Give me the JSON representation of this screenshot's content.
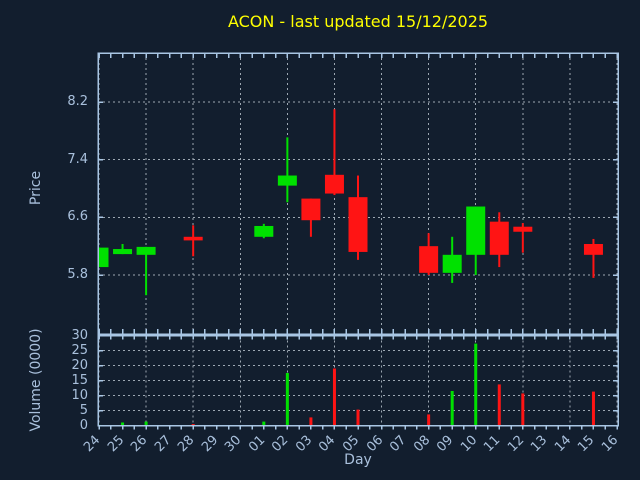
{
  "title": "ACON - last updated 15/12/2025",
  "colors": {
    "background": "#121e2e",
    "up": "#00e100",
    "down": "#ff1414",
    "frame": "#a9c6e4",
    "grid": "#b6c1cb",
    "tick_text": "#a9c0dc",
    "title_text": "#ffff00"
  },
  "chart_data": {
    "type": "candlestick",
    "title": "ACON - last updated 15/12/2025",
    "xlabel": "Day",
    "ylabel_price": "Price",
    "ylabel_volume": "Volume (0000)",
    "grid": true,
    "price_range": [
      4.98,
      8.88
    ],
    "volume_range": [
      0,
      30
    ],
    "x_categories": [
      "24",
      "25",
      "26",
      "27",
      "28",
      "29",
      "30",
      "01",
      "02",
      "03",
      "04",
      "05",
      "06",
      "07",
      "08",
      "09",
      "10",
      "11",
      "12",
      "13",
      "14",
      "15",
      "16"
    ],
    "price_ticks": [
      {
        "label": "8.2",
        "value": 8.2
      },
      {
        "label": "7.4",
        "value": 7.4
      },
      {
        "label": "6.6",
        "value": 6.6
      },
      {
        "label": "5.8",
        "value": 5.8
      }
    ],
    "volume_ticks": [
      {
        "label": "30",
        "value": 30
      },
      {
        "label": "25",
        "value": 25
      },
      {
        "label": "20",
        "value": 20
      },
      {
        "label": "15",
        "value": 15
      },
      {
        "label": "10",
        "value": 10
      },
      {
        "label": "5",
        "value": 5
      },
      {
        "label": "0",
        "value": 0
      }
    ],
    "series": [
      {
        "day": "24",
        "open": 5.91,
        "high": 6.18,
        "low": 5.91,
        "close": 6.18,
        "volume": 0.2
      },
      {
        "day": "25",
        "open": 6.09,
        "high": 6.23,
        "low": 6.09,
        "close": 6.16,
        "volume": 1.0
      },
      {
        "day": "26",
        "open": 6.08,
        "high": 6.19,
        "low": 5.52,
        "close": 6.19,
        "volume": 1.3
      },
      {
        "day": "28",
        "open": 6.33,
        "high": 6.49,
        "low": 6.06,
        "close": 6.28,
        "volume": 0.5
      },
      {
        "day": "01",
        "open": 6.33,
        "high": 6.51,
        "low": 6.31,
        "close": 6.48,
        "volume": 1.3
      },
      {
        "day": "02",
        "open": 7.04,
        "high": 7.71,
        "low": 6.81,
        "close": 7.18,
        "volume": 17.5
      },
      {
        "day": "03",
        "open": 6.86,
        "high": 6.86,
        "low": 6.33,
        "close": 6.56,
        "volume": 2.7
      },
      {
        "day": "04",
        "open": 7.19,
        "high": 8.1,
        "low": 6.91,
        "close": 6.93,
        "volume": 19.0
      },
      {
        "day": "05",
        "open": 6.88,
        "high": 7.18,
        "low": 6.01,
        "close": 6.12,
        "volume": 5.3
      },
      {
        "day": "08",
        "open": 6.2,
        "high": 6.38,
        "low": 5.8,
        "close": 5.83,
        "volume": 3.7
      },
      {
        "day": "09",
        "open": 5.83,
        "high": 6.33,
        "low": 5.69,
        "close": 6.08,
        "volume": 11.5
      },
      {
        "day": "10",
        "open": 6.08,
        "high": 6.75,
        "low": 5.8,
        "close": 6.75,
        "volume": 27.3
      },
      {
        "day": "11",
        "open": 6.54,
        "high": 6.67,
        "low": 5.91,
        "close": 6.08,
        "volume": 13.7
      },
      {
        "day": "12",
        "open": 6.47,
        "high": 6.52,
        "low": 6.11,
        "close": 6.4,
        "volume": 10.7
      },
      {
        "day": "15",
        "open": 6.23,
        "high": 6.3,
        "low": 5.76,
        "close": 6.08,
        "volume": 11.3
      }
    ]
  }
}
